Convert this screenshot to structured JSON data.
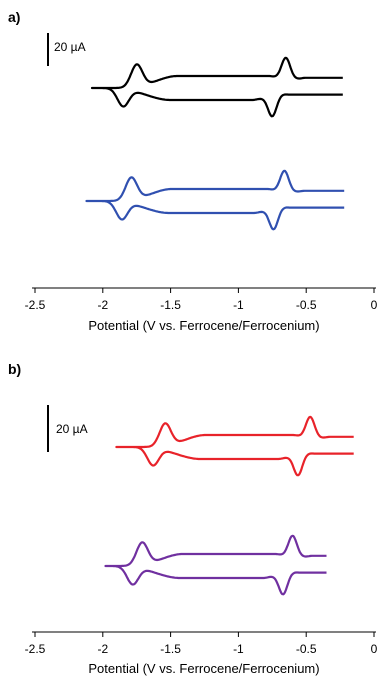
{
  "chart_data": [
    {
      "type": "line",
      "panel_label": "a)",
      "xlabel": "Potential (V vs. Ferrocene/Ferrocenium)",
      "xlim": [
        -2.5,
        0
      ],
      "xticks": [
        "-2.5",
        "-2",
        "-1.5",
        "-1",
        "-0.5",
        "0"
      ],
      "scale_bar": {
        "label": "20 µA",
        "value_uA": 20
      },
      "series": [
        {
          "color": "#000000",
          "x_start": -0.23,
          "x_min": -2.08,
          "redox_couples": [
            {
              "E_pc": -1.85,
              "E_pa": -1.75
            },
            {
              "E_pc": -0.75,
              "E_pa": -0.65
            }
          ]
        },
        {
          "color": "#3050b0",
          "x_start": -0.22,
          "x_min": -2.12,
          "redox_couples": [
            {
              "E_pc": -1.86,
              "E_pa": -1.79
            },
            {
              "E_pc": -0.74,
              "E_pa": -0.66
            }
          ]
        }
      ]
    },
    {
      "type": "line",
      "panel_label": "b)",
      "xlabel": "Potential (V vs. Ferrocene/Ferrocenium)",
      "xlim": [
        -2.5,
        0
      ],
      "xticks": [
        "-2.5",
        "-2",
        "-1.5",
        "-1",
        "-0.5",
        "0"
      ],
      "scale_bar": {
        "label": "20 µA",
        "value_uA": 20
      },
      "series": [
        {
          "color": "#e8232a",
          "x_start": -0.15,
          "x_min": -1.9,
          "redox_couples": [
            {
              "E_pc": -1.63,
              "E_pa": -1.54
            },
            {
              "E_pc": -0.56,
              "E_pa": -0.47
            }
          ]
        },
        {
          "color": "#7030a0",
          "x_start": -0.35,
          "x_min": -1.98,
          "redox_couples": [
            {
              "E_pc": -1.78,
              "E_pa": -1.71
            },
            {
              "E_pc": -0.67,
              "E_pa": -0.6
            }
          ]
        }
      ]
    }
  ]
}
